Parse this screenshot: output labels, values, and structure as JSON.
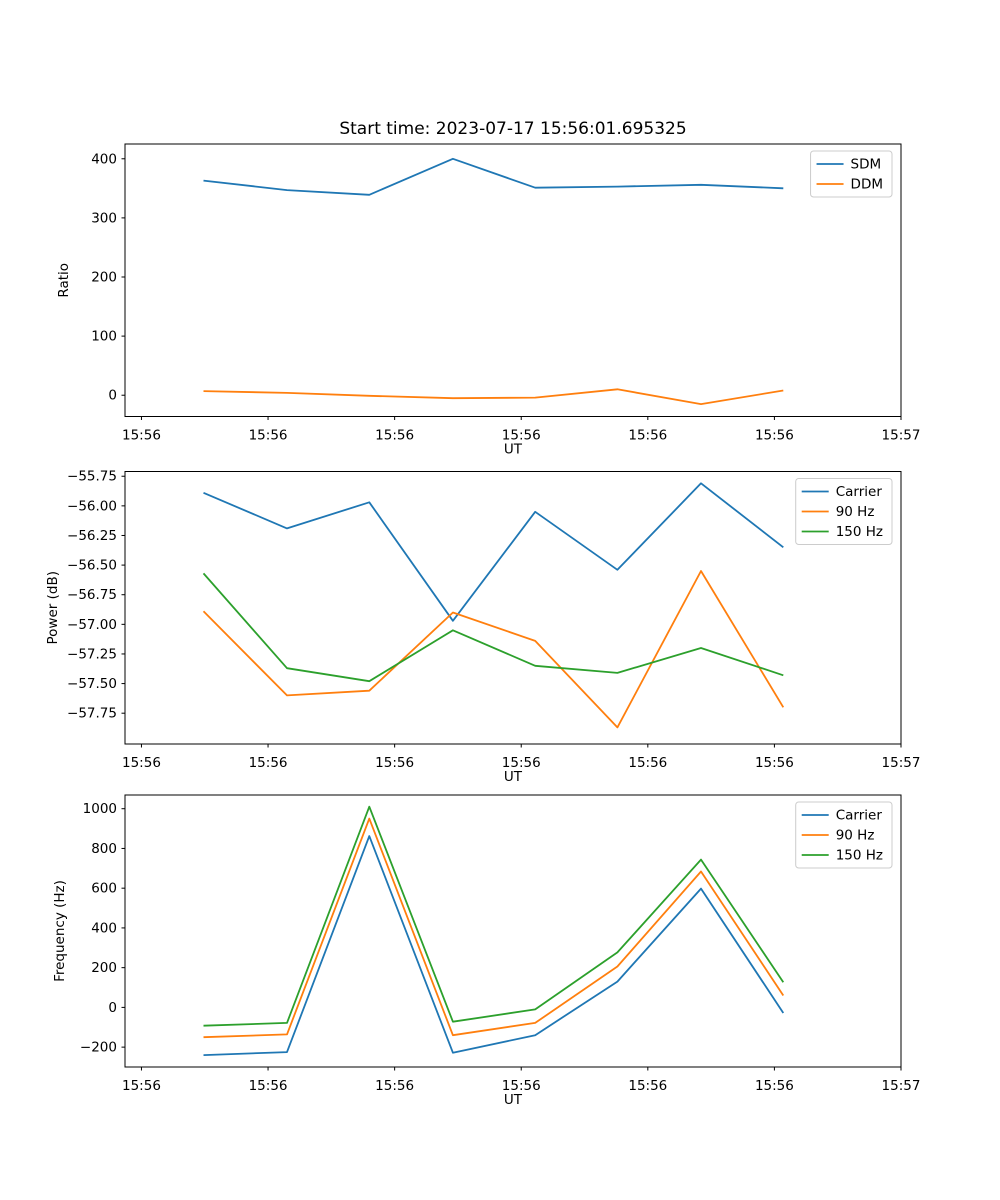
{
  "figure": {
    "title": "Start time: 2023-07-17 15:56:01.695325",
    "background": "#ffffff",
    "accent_colors": {
      "blue": "#1f77b4",
      "orange": "#ff7f0e",
      "green": "#2ca02c"
    }
  },
  "chart_data": [
    {
      "type": "line",
      "title": "",
      "xlabel": "UT",
      "ylabel": "Ratio",
      "grid": false,
      "legend_position": "upper right",
      "xlim_seconds": [
        -1.3,
        60
      ],
      "x_seconds": [
        4.9,
        11.5,
        18.0,
        24.6,
        31.1,
        37.6,
        44.2,
        50.7
      ],
      "xticks": {
        "positions": [
          0,
          10,
          20,
          30,
          40,
          50,
          60
        ],
        "labels": [
          "15:56",
          "15:56",
          "15:56",
          "15:56",
          "15:56",
          "15:56",
          "15:57"
        ]
      },
      "ylim": [
        -36,
        425
      ],
      "yticks": {
        "values": [
          0,
          100,
          200,
          300,
          400
        ],
        "labels": [
          "0",
          "100",
          "200",
          "300",
          "400"
        ]
      },
      "series": [
        {
          "name": "SDM",
          "color": "#1f77b4",
          "values": [
            363,
            347,
            339,
            400,
            351,
            353,
            356,
            350
          ]
        },
        {
          "name": "DDM",
          "color": "#ff7f0e",
          "values": [
            7,
            4,
            -1,
            -5,
            -4,
            10,
            -15,
            8
          ]
        }
      ]
    },
    {
      "type": "line",
      "title": "",
      "xlabel": "UT",
      "ylabel": "Power (dB)",
      "grid": false,
      "legend_position": "upper right",
      "xlim_seconds": [
        -1.3,
        60
      ],
      "x_seconds": [
        4.9,
        11.5,
        18.0,
        24.6,
        31.1,
        37.6,
        44.2,
        50.7
      ],
      "xticks": {
        "positions": [
          0,
          10,
          20,
          30,
          40,
          50,
          60
        ],
        "labels": [
          "15:56",
          "15:56",
          "15:56",
          "15:56",
          "15:56",
          "15:56",
          "15:57"
        ]
      },
      "ylim": [
        -58.01,
        -55.71
      ],
      "yticks": {
        "values": [
          -55.75,
          -56.0,
          -56.25,
          -56.5,
          -56.75,
          -57.0,
          -57.25,
          -57.5,
          -57.75
        ],
        "labels": [
          "−55.75",
          "−56.00",
          "−56.25",
          "−56.50",
          "−56.75",
          "−57.00",
          "−57.25",
          "−57.50",
          "−57.75"
        ]
      },
      "series": [
        {
          "name": "Carrier",
          "color": "#1f77b4",
          "values": [
            -55.89,
            -56.19,
            -55.97,
            -56.97,
            -56.05,
            -56.54,
            -55.81,
            -56.35
          ]
        },
        {
          "name": "90 Hz",
          "color": "#ff7f0e",
          "values": [
            -56.89,
            -57.6,
            -57.56,
            -56.9,
            -57.14,
            -57.87,
            -56.55,
            -57.7
          ]
        },
        {
          "name": "150 Hz",
          "color": "#2ca02c",
          "values": [
            -56.57,
            -57.37,
            -57.48,
            -57.05,
            -57.35,
            -57.41,
            -57.2,
            -57.43
          ]
        }
      ]
    },
    {
      "type": "line",
      "title": "",
      "xlabel": "UT",
      "ylabel": "Frequency (Hz)",
      "grid": false,
      "legend_position": "upper right",
      "xlim_seconds": [
        -1.3,
        60
      ],
      "x_seconds": [
        4.9,
        11.5,
        18.0,
        24.6,
        31.1,
        37.6,
        44.2,
        50.7
      ],
      "xticks": {
        "positions": [
          0,
          10,
          20,
          30,
          40,
          50,
          60
        ],
        "labels": [
          "15:56",
          "15:56",
          "15:56",
          "15:56",
          "15:56",
          "15:56",
          "15:57"
        ]
      },
      "ylim": [
        -300,
        1069
      ],
      "yticks": {
        "values": [
          -200,
          0,
          200,
          400,
          600,
          800,
          1000
        ],
        "labels": [
          "−200",
          "0",
          "200",
          "400",
          "600",
          "800",
          "1000"
        ]
      },
      "series": [
        {
          "name": "Carrier",
          "color": "#1f77b4",
          "values": [
            -240,
            -225,
            862,
            -228,
            -140,
            130,
            598,
            -28
          ]
        },
        {
          "name": "90 Hz",
          "color": "#ff7f0e",
          "values": [
            -150,
            -136,
            950,
            -140,
            -78,
            206,
            684,
            60
          ]
        },
        {
          "name": "150 Hz",
          "color": "#2ca02c",
          "values": [
            -92,
            -78,
            1010,
            -72,
            -10,
            277,
            744,
            127
          ]
        }
      ]
    }
  ]
}
